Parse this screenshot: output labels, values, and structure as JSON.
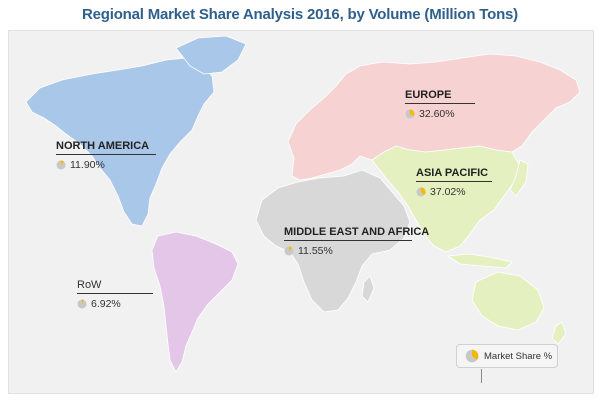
{
  "title": "Regional Market Share Analysis 2016, by Volume (Million Tons)",
  "colors": {
    "north_america": "#a9c7e8",
    "south_america": "#e3c6e8",
    "europe": "#f6d2d2",
    "asia_pacific": "#e5f0c0",
    "middle_east_africa": "#d8d8d8",
    "pie_slice": "#f5b800",
    "pie_rest": "#c8c8c8"
  },
  "regions": {
    "north_america": {
      "name": "NORTH AMERICA",
      "share_label": "11.90%",
      "share": 11.9
    },
    "europe": {
      "name": "EUROPE",
      "share_label": "32.60%",
      "share": 32.6
    },
    "asia_pacific": {
      "name": "ASIA PACIFIC",
      "share_label": "37.02%",
      "share": 37.02
    },
    "middle_east_africa": {
      "name": "MIDDLE EAST AND AFRICA",
      "share_label": "11.55%",
      "share": 11.55
    },
    "row": {
      "name": "RoW",
      "share_label": "6.92%",
      "share": 6.92
    }
  },
  "legend": {
    "label": "Market Share %",
    "icon": "pie-chart-icon"
  }
}
